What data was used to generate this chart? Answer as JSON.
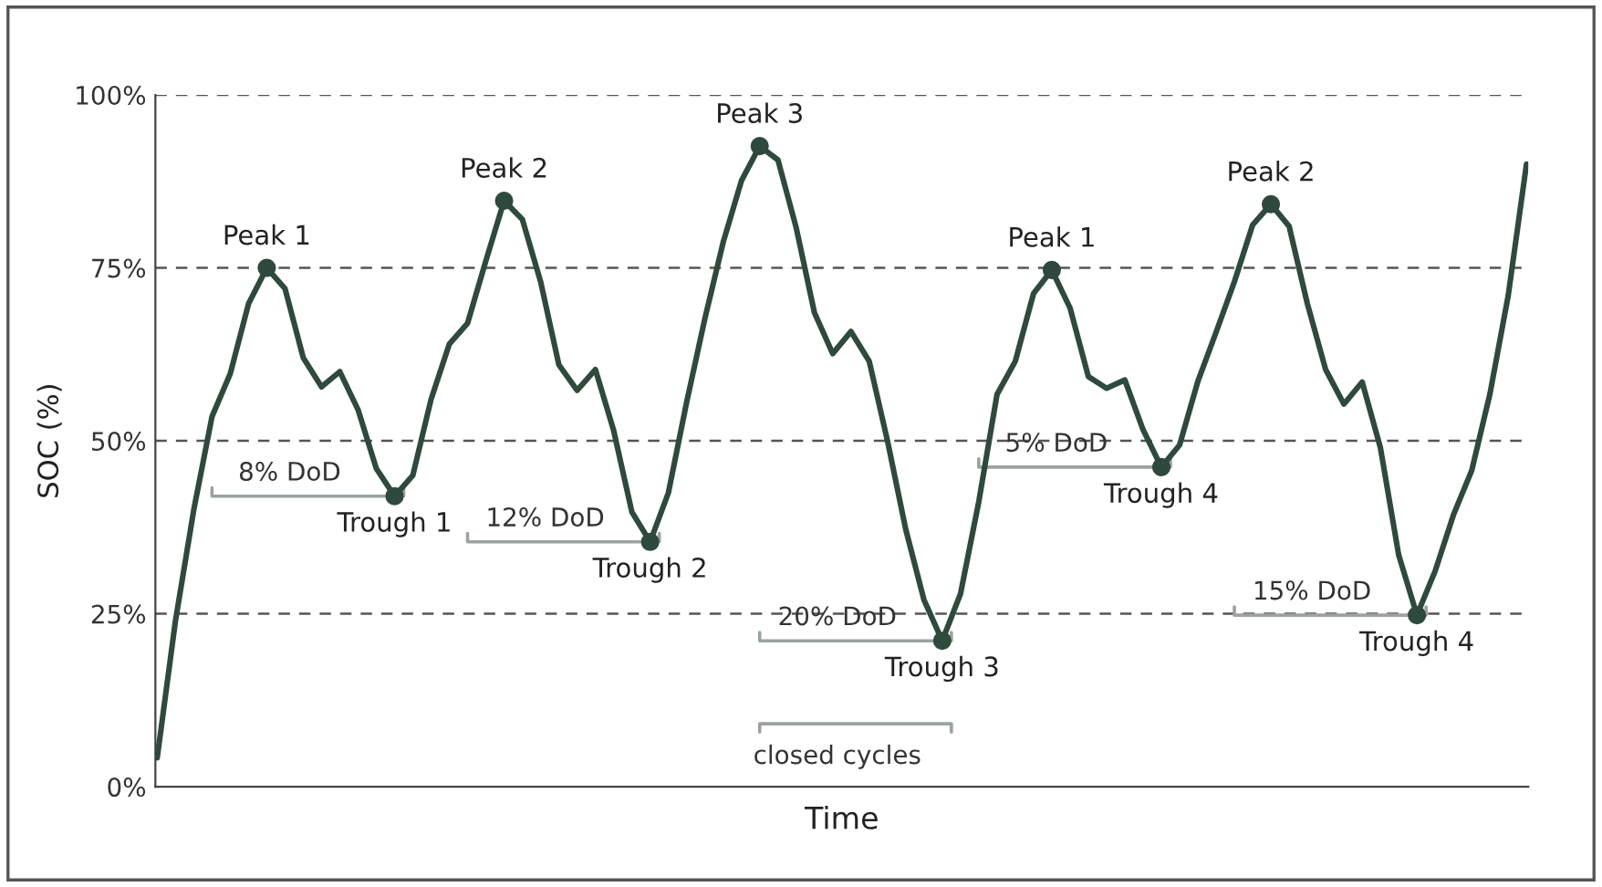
{
  "chart_data": {
    "type": "line",
    "xlabel": "Time",
    "ylabel": "SOC (%)",
    "categories": [
      null,
      null,
      null,
      null,
      null,
      null,
      null,
      null,
      null,
      null,
      null,
      null,
      null,
      null,
      null,
      null,
      null,
      null,
      null,
      null,
      null,
      null,
      null,
      null,
      null,
      null,
      null,
      null,
      null,
      null,
      null,
      null,
      null,
      null,
      null,
      null,
      null,
      null,
      null,
      null,
      null,
      null,
      null,
      null,
      null,
      null,
      null,
      null,
      null,
      null,
      null,
      null,
      null,
      null,
      null,
      null,
      null,
      null,
      null,
      null,
      null,
      null,
      null,
      null,
      null,
      null,
      null,
      null,
      null,
      null,
      null,
      null,
      null,
      null,
      null,
      null
    ],
    "ylim": [
      0,
      100
    ],
    "yticks": [
      {
        "value": 0,
        "label": "0%"
      },
      {
        "value": 25,
        "label": "25%"
      },
      {
        "value": 50,
        "label": "50%"
      },
      {
        "value": 75,
        "label": "75%"
      },
      {
        "value": 100,
        "label": "100%"
      }
    ],
    "grid": "y",
    "line_style": "solid",
    "marker": "none",
    "color": "#9aa39e",
    "series": [
      {
        "color": "#2e4a3c",
        "values": [
          4.2,
          24,
          40,
          53.5,
          59.7,
          69.8,
          75,
          72,
          62,
          57.8,
          60,
          54.5,
          46,
          42,
          45,
          56,
          64,
          67,
          76,
          84.7,
          82,
          73,
          61,
          57.3,
          60.3,
          51.5,
          39.7,
          35.4,
          42.5,
          55.6,
          67.7,
          78.7,
          87.6,
          92.6,
          90.6,
          80.8,
          68.5,
          62.6,
          65.8,
          61.5,
          50,
          37.2,
          27,
          21.1,
          27.9,
          41.2,
          56.7,
          61.5,
          71.3,
          74.7,
          69.2,
          59.3,
          57.6,
          58.8,
          51.6,
          46.2,
          49.4,
          58.6,
          65.7,
          73,
          81.2,
          84.2,
          81,
          69.8,
          60.3,
          55.3,
          58.5,
          49,
          33.5,
          24.8,
          31.2,
          39.3,
          45.7,
          56.8,
          71,
          90
        ]
      },
      {
        "type": "scatter",
        "marker": "circle",
        "color": "#2e4a3c",
        "values": [
          null,
          null,
          null,
          null,
          null,
          null,
          75,
          null,
          null,
          null,
          null,
          null,
          null,
          42,
          null,
          null,
          null,
          null,
          null,
          84.7,
          null,
          null,
          null,
          null,
          null,
          null,
          null,
          35.4,
          null,
          null,
          null,
          null,
          null,
          92.6,
          null,
          null,
          null,
          null,
          null,
          null,
          null,
          null,
          null,
          21.1,
          null,
          null,
          null,
          null,
          null,
          74.7,
          null,
          null,
          null,
          null,
          null,
          46.2,
          null,
          null,
          null,
          null,
          null,
          84.2,
          null,
          null,
          null,
          null,
          null,
          null,
          null,
          24.8,
          null,
          null,
          null,
          null,
          null,
          null
        ]
      }
    ],
    "annotations": [
      {
        "text": "Peak 1",
        "y": 75
      },
      {
        "text": "Trough 1",
        "y": 42
      },
      {
        "text": "Peak 2",
        "y": 84.7
      },
      {
        "text": "Trough 2",
        "y": 35.4
      },
      {
        "text": "Peak 3",
        "y": 92.6
      },
      {
        "text": "Trough 3",
        "y": 21.1
      },
      {
        "text": "Peak 1",
        "y": 74.7
      },
      {
        "text": "Trough 4",
        "y": 46.2
      },
      {
        "text": "Peak 2",
        "y": 84.2
      },
      {
        "text": "Trough 4",
        "y": 24.8
      },
      "8% DoD",
      "12% DoD",
      "20% DoD",
      "5% DoD",
      "15% DoD",
      "closed cycles"
    ]
  }
}
